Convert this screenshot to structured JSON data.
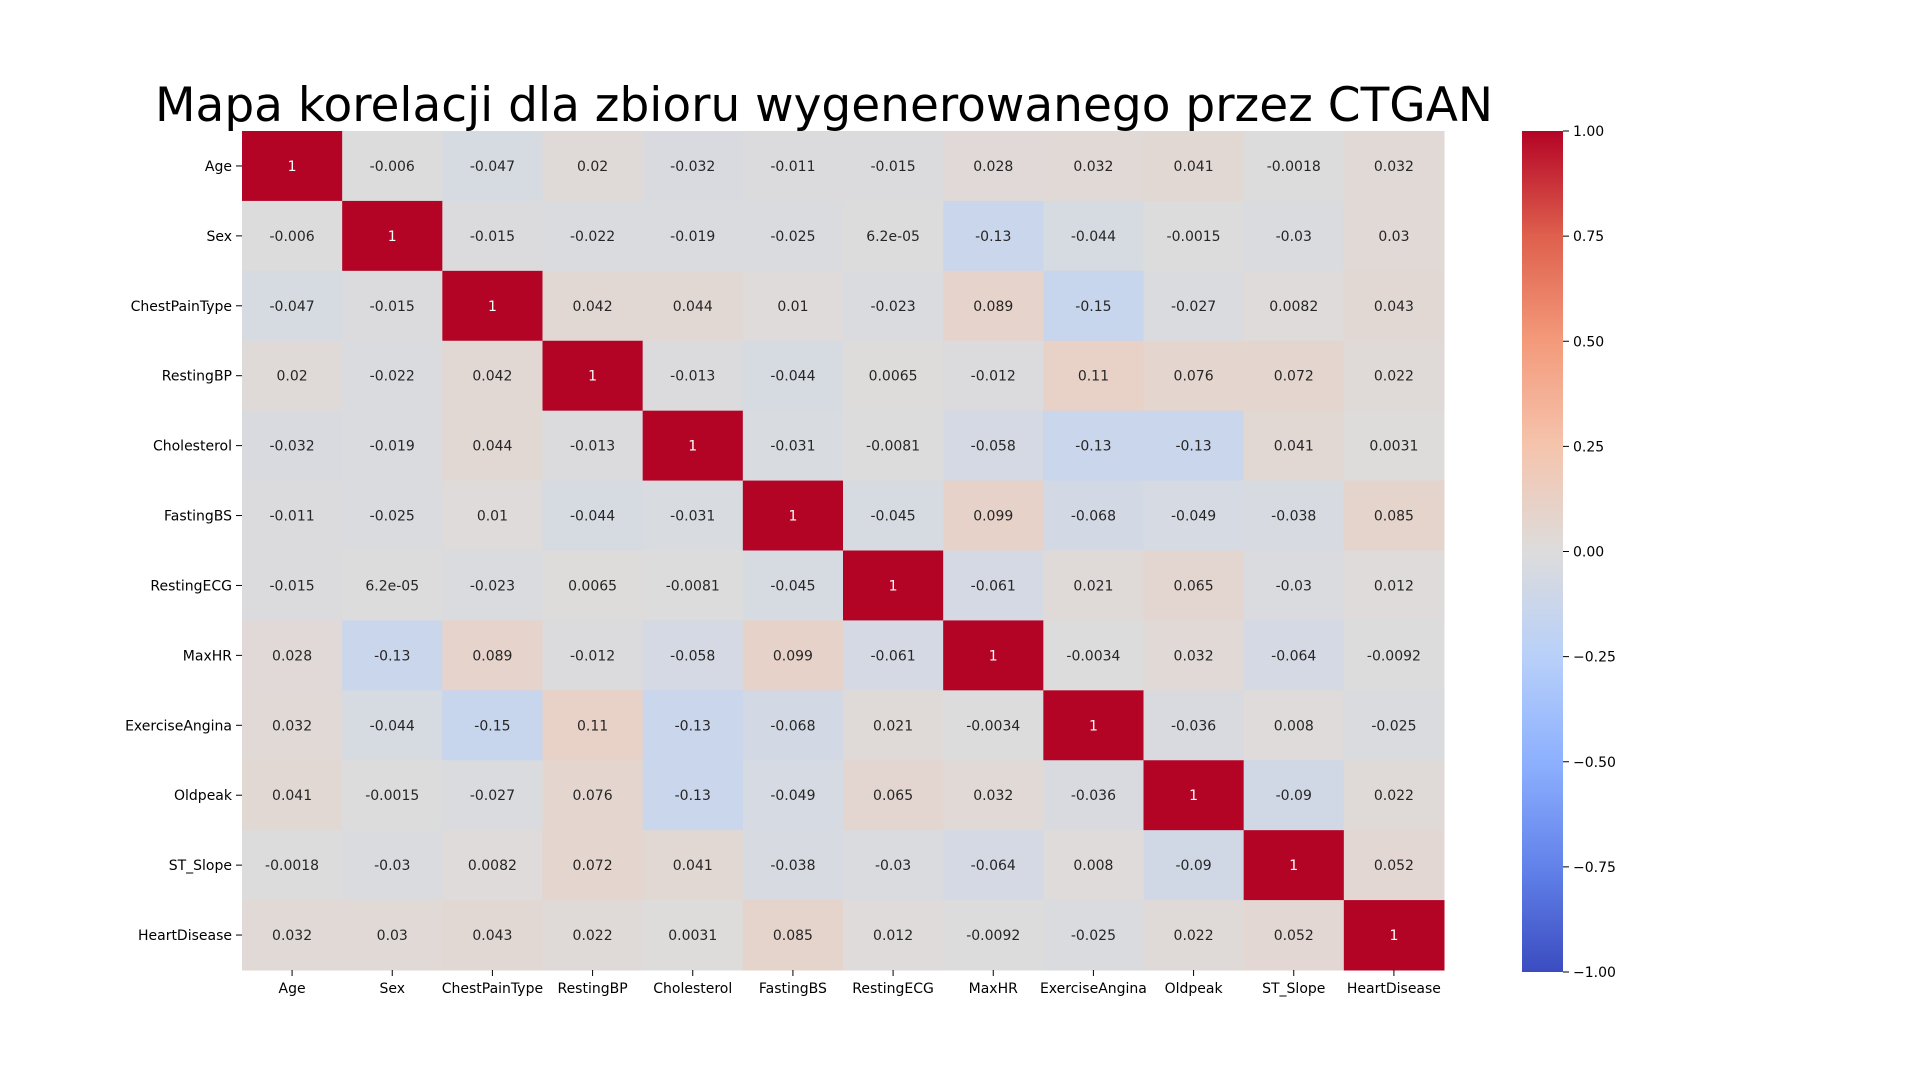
{
  "chart_data": {
    "type": "heatmap",
    "title": "Mapa korelacji dla zbioru wygenerowanego przez CTGAN",
    "colormap": "coolwarm",
    "vmin": -1,
    "vmax": 1,
    "colorbar_ticks": [
      "1.00",
      "0.75",
      "0.50",
      "0.25",
      "0.00",
      "−0.25",
      "−0.50",
      "−0.75",
      "−1.00"
    ],
    "colorbar_tick_values": [
      1.0,
      0.75,
      0.5,
      0.25,
      0.0,
      -0.25,
      -0.5,
      -0.75,
      -1.0
    ],
    "labels": [
      "Age",
      "Sex",
      "ChestPainType",
      "RestingBP",
      "Cholesterol",
      "FastingBS",
      "RestingECG",
      "MaxHR",
      "ExerciseAngina",
      "Oldpeak",
      "ST_Slope",
      "HeartDisease"
    ],
    "matrix": [
      [
        "1",
        "-0.006",
        "-0.047",
        "0.02",
        "-0.032",
        "-0.011",
        "-0.015",
        "0.028",
        "0.032",
        "0.041",
        "-0.0018",
        "0.032"
      ],
      [
        "-0.006",
        "1",
        "-0.015",
        "-0.022",
        "-0.019",
        "-0.025",
        "6.2e-05",
        "-0.13",
        "-0.044",
        "-0.0015",
        "-0.03",
        "0.03"
      ],
      [
        "-0.047",
        "-0.015",
        "1",
        "0.042",
        "0.044",
        "0.01",
        "-0.023",
        "0.089",
        "-0.15",
        "-0.027",
        "0.0082",
        "0.043"
      ],
      [
        "0.02",
        "-0.022",
        "0.042",
        "1",
        "-0.013",
        "-0.044",
        "0.0065",
        "-0.012",
        "0.11",
        "0.076",
        "0.072",
        "0.022"
      ],
      [
        "-0.032",
        "-0.019",
        "0.044",
        "-0.013",
        "1",
        "-0.031",
        "-0.0081",
        "-0.058",
        "-0.13",
        "-0.13",
        "0.041",
        "0.0031"
      ],
      [
        "-0.011",
        "-0.025",
        "0.01",
        "-0.044",
        "-0.031",
        "1",
        "-0.045",
        "0.099",
        "-0.068",
        "-0.049",
        "-0.038",
        "0.085"
      ],
      [
        "-0.015",
        "6.2e-05",
        "-0.023",
        "0.0065",
        "-0.0081",
        "-0.045",
        "1",
        "-0.061",
        "0.021",
        "0.065",
        "-0.03",
        "0.012"
      ],
      [
        "0.028",
        "-0.13",
        "0.089",
        "-0.012",
        "-0.058",
        "0.099",
        "-0.061",
        "1",
        "-0.0034",
        "0.032",
        "-0.064",
        "-0.0092"
      ],
      [
        "0.032",
        "-0.044",
        "-0.15",
        "0.11",
        "-0.13",
        "-0.068",
        "0.021",
        "-0.0034",
        "1",
        "-0.036",
        "0.008",
        "-0.025"
      ],
      [
        "0.041",
        "-0.0015",
        "-0.027",
        "0.076",
        "-0.13",
        "-0.049",
        "0.065",
        "0.032",
        "-0.036",
        "1",
        "-0.09",
        "0.022"
      ],
      [
        "-0.0018",
        "-0.03",
        "0.0082",
        "0.072",
        "0.041",
        "-0.038",
        "-0.03",
        "-0.064",
        "0.008",
        "-0.09",
        "1",
        "0.052"
      ],
      [
        "0.032",
        "0.03",
        "0.043",
        "0.022",
        "0.0031",
        "0.085",
        "0.012",
        "-0.0092",
        "-0.025",
        "0.022",
        "0.052",
        "1"
      ]
    ]
  }
}
